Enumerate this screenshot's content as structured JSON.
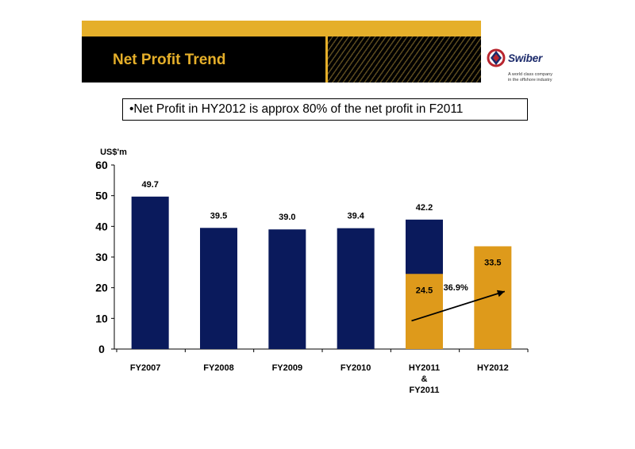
{
  "header": {
    "title": "Net Profit Trend"
  },
  "logo": {
    "name": "Swiber",
    "tagline_1": "A world class company",
    "tagline_2": "in the offshore industry"
  },
  "note": "•Net Profit in HY2012 is approx 80% of the net profit in F2011",
  "colors": {
    "navy": "#0A1A5C",
    "gold": "#E5AF2A",
    "bar_gold": "#DE9A1B"
  },
  "chart_data": {
    "type": "bar",
    "ylabel": "US$'m",
    "ylim": [
      0,
      60
    ],
    "yticks": [
      0,
      10,
      20,
      30,
      40,
      50,
      60
    ],
    "categories": [
      "FY2007",
      "FY2008",
      "FY2009",
      "FY2010",
      "HY2011\n&\nFY2011",
      "HY2012"
    ],
    "series": [
      {
        "color": "#0A1A5C",
        "values": [
          49.7,
          39.5,
          39.0,
          39.4,
          42.2,
          null
        ],
        "labels": [
          "49.7",
          "39.5",
          "39.0",
          "39.4",
          "42.2",
          null
        ]
      },
      {
        "color": "#DE9A1B",
        "values": [
          null,
          null,
          null,
          null,
          24.5,
          33.5
        ],
        "labels": [
          null,
          null,
          null,
          null,
          "24.5",
          "33.5"
        ]
      }
    ],
    "annotation": {
      "text": "36.9%",
      "from_category": 4,
      "to_category": 5
    }
  }
}
